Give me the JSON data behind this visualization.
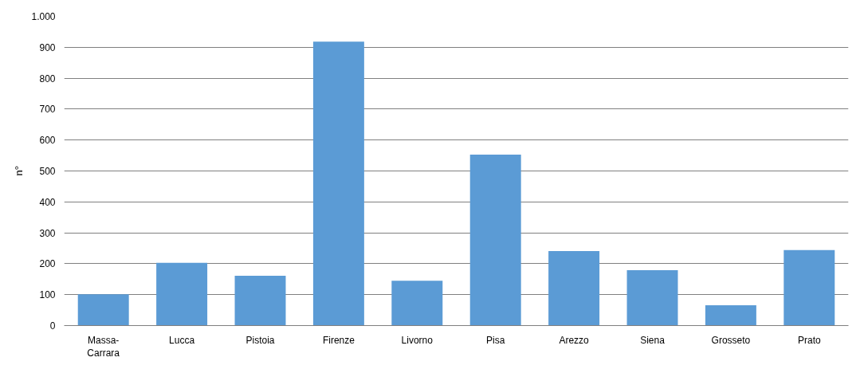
{
  "chart_data": {
    "type": "bar",
    "ylabel": "n°",
    "categories": [
      "Massa-Carrara",
      "Lucca",
      "Pistoia",
      "Firenze",
      "Livorno",
      "Pisa",
      "Arezzo",
      "Siena",
      "Grosseto",
      "Prato"
    ],
    "values": [
      101,
      203,
      161,
      918,
      145,
      553,
      241,
      179,
      66,
      244
    ],
    "color": "#5b9bd5",
    "ylim": [
      0,
      1000
    ],
    "yticks": [
      0,
      100,
      200,
      300,
      400,
      500,
      600,
      700,
      800,
      900,
      {
        "value": 1000,
        "label": "1.000"
      }
    ],
    "grid": "y"
  }
}
